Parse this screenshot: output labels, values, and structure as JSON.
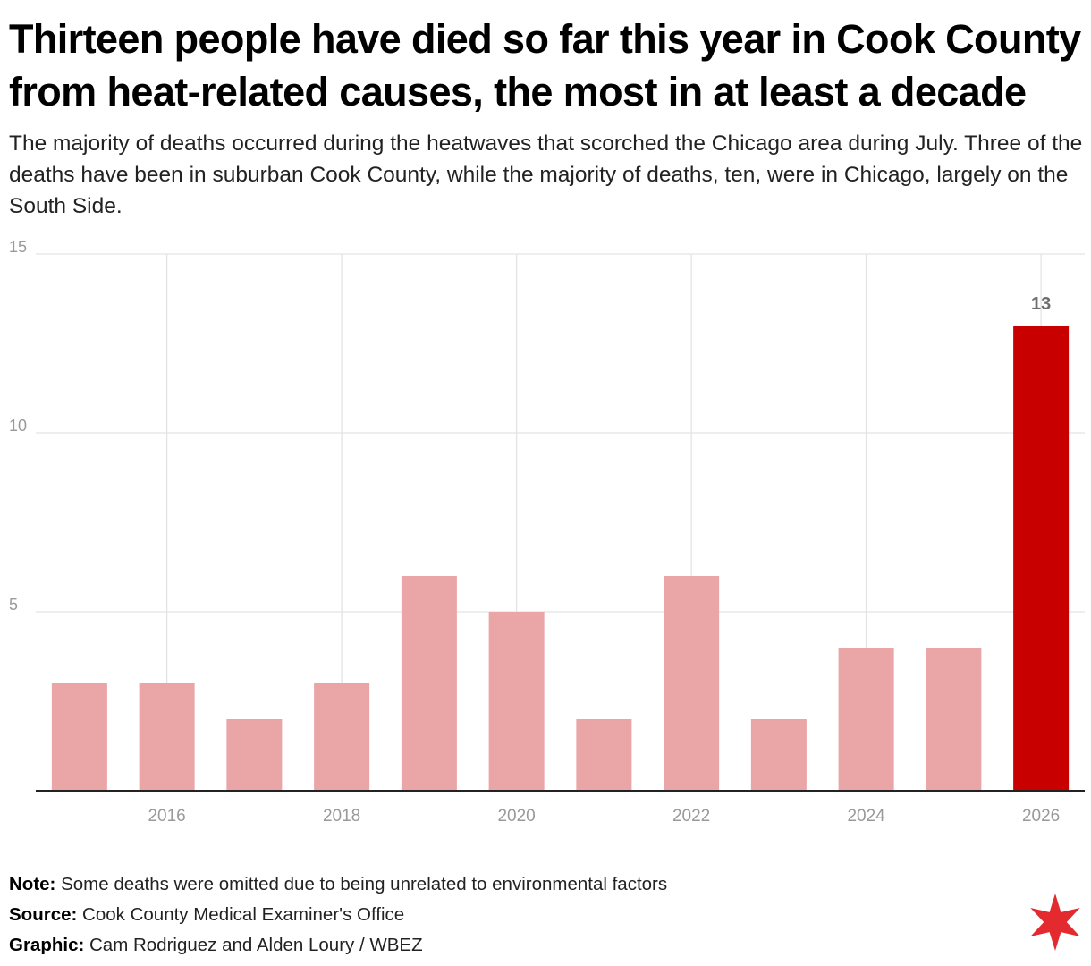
{
  "header": {
    "title": "Thirteen people have died so far this year in Cook County from heat-related causes, the most in at least a decade",
    "subtitle": "The majority of deaths occurred during the heatwaves that scorched the Chicago area during July. Three of the deaths have been in suburban Cook County, while the majority of deaths, ten, were in Chicago, largely on the South Side."
  },
  "chart_data": {
    "type": "bar",
    "x": [
      2015,
      2016,
      2017,
      2018,
      2019,
      2020,
      2021,
      2022,
      2023,
      2024,
      2025,
      2026
    ],
    "values": [
      3,
      3,
      2,
      3,
      6,
      5,
      2,
      6,
      2,
      4,
      4,
      13
    ],
    "x_tick_labels": [
      "2016",
      "2018",
      "2020",
      "2022",
      "2024",
      "2026"
    ],
    "y_ticks": [
      5,
      10,
      15
    ],
    "y_tick_labels": [
      "5",
      "10",
      "15"
    ],
    "ylim": [
      0,
      15
    ],
    "xlim": [
      2014.5,
      2026.5
    ],
    "grid": true,
    "highlight_index": 11,
    "highlight_label": "13",
    "colors": {
      "bar": "#eaa5a6",
      "highlight": "#c80000",
      "grid": "#e3e3e3",
      "axis": "#222222",
      "tick": "#999999"
    }
  },
  "footer": {
    "note_label": "Note:",
    "note_text": "Some deaths were omitted due to being unrelated to environmental factors",
    "source_label": "Source:",
    "source_text": "Cook County Medical Examiner's Office",
    "graphic_label": "Graphic:",
    "graphic_text": "Cam Rodriguez and Alden Loury / WBEZ"
  },
  "logo": {
    "icon": "six-point-star-icon",
    "color": "#e32a2f"
  }
}
